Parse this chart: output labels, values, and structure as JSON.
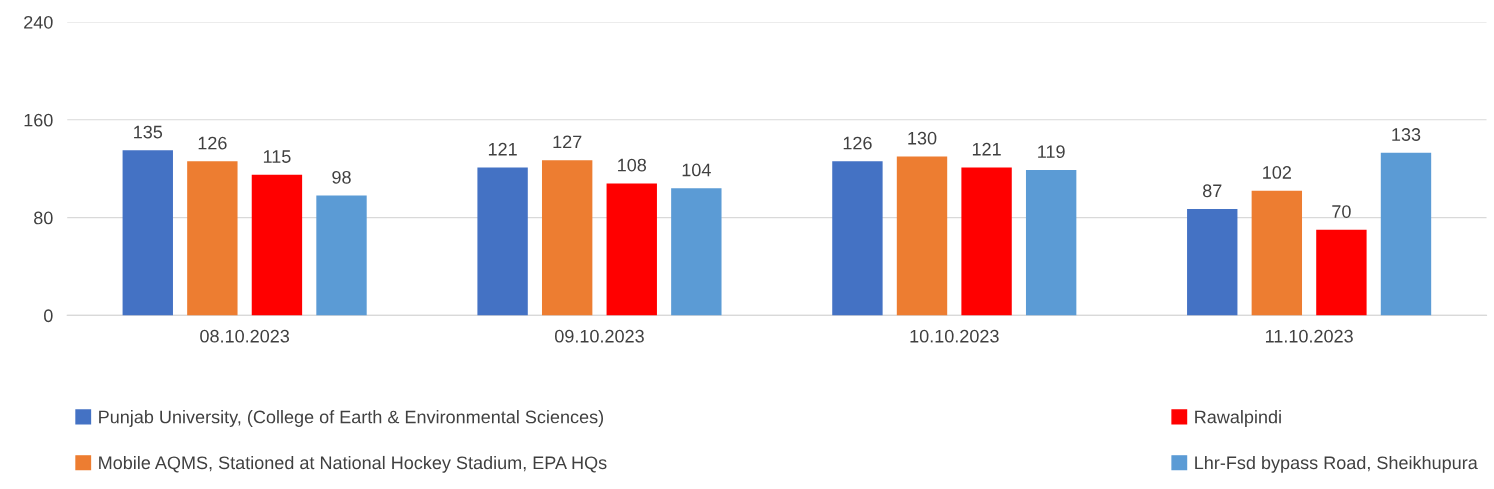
{
  "chart_data": {
    "type": "bar",
    "categories": [
      "08.10.2023",
      "09.10.2023",
      "10.10.2023",
      "11.10.2023"
    ],
    "series": [
      {
        "name": "Punjab University, (College of Earth & Environmental Sciences)",
        "color": "#4472c4",
        "values": [
          135,
          121,
          126,
          87
        ]
      },
      {
        "name": "Mobile AQMS, Stationed at National Hockey Stadium, EPA HQs",
        "color": "#ed7d31",
        "values": [
          126,
          127,
          130,
          102
        ]
      },
      {
        "name": "Rawalpindi",
        "color": "#ff0000",
        "values": [
          115,
          108,
          121,
          70
        ]
      },
      {
        "name": "Lhr-Fsd bypass Road, Sheikhupura",
        "color": "#5b9bd5",
        "values": [
          98,
          104,
          119,
          133
        ]
      }
    ],
    "ylim": [
      0,
      240
    ],
    "yticks": [
      0,
      80,
      160,
      240
    ],
    "grid": "y",
    "legend": "bottom",
    "data_labels": true
  }
}
